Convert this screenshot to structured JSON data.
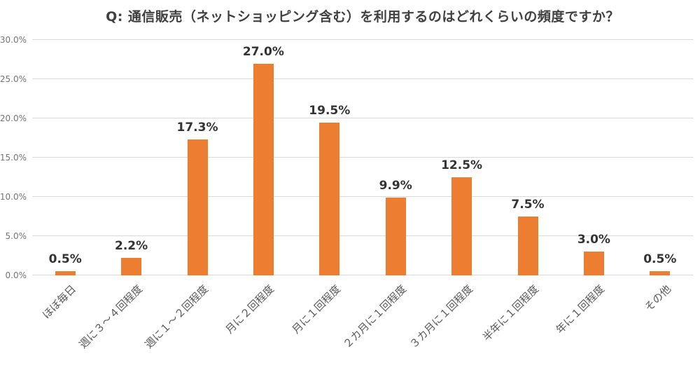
{
  "page": {
    "background": "#FFFFFF"
  },
  "chart_data": {
    "type": "bar",
    "title": "Q: 通信販売（ネットショッピング含む）を利用するのはどれくらいの頻度ですか？",
    "categories": [
      "ほぼ毎日",
      "週に３～４回程度",
      "週に１～２回程度",
      "月に２回程度",
      "月に１回程度",
      "２カ月に１回程度",
      "３カ月に１回程度",
      "半年に１回程度",
      "年に１回程度",
      "その他"
    ],
    "values": [
      0.5,
      2.2,
      17.3,
      27.0,
      19.5,
      9.9,
      12.5,
      7.5,
      3.0,
      0.5
    ],
    "value_labels": [
      "0.5%",
      "2.2%",
      "17.3%",
      "27.0%",
      "19.5%",
      "9.9%",
      "12.5%",
      "7.5%",
      "3.0%",
      "0.5%"
    ],
    "xlabel": "",
    "ylabel": "",
    "ylim": [
      0,
      30
    ],
    "y_tick_step": 5,
    "y_tick_labels": [
      "0.0%",
      "5.0%",
      "10.0%",
      "15.0%",
      "20.0%",
      "25.0%",
      "30.0%"
    ],
    "grid": true,
    "legend": "none",
    "bar_orientation": "vertical",
    "x_label_rotation_deg": -45
  },
  "colors": {
    "bar": "#ED7D31",
    "gridline": "#D9D9D9",
    "title": "#404040",
    "data_label": "#333333",
    "x_tick_label": "#595959",
    "y_tick_label": "#737373",
    "background": "#FFFFFF"
  }
}
